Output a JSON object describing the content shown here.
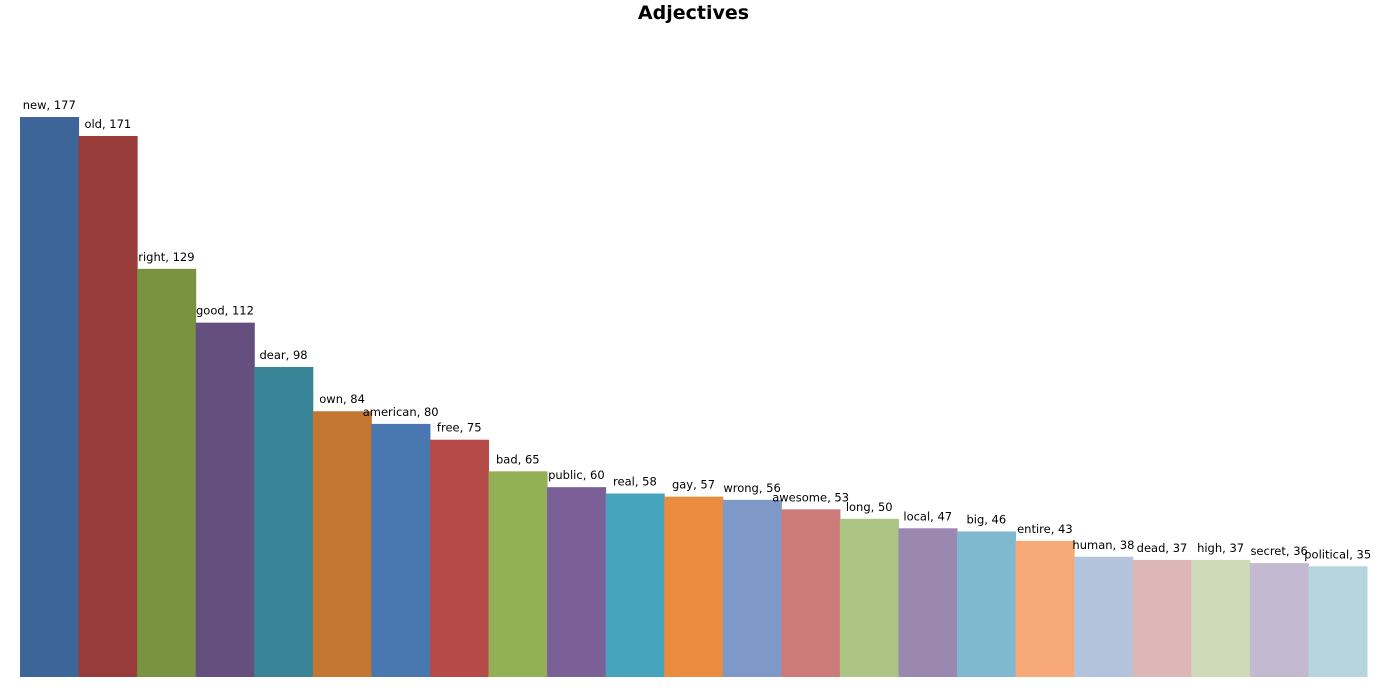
{
  "chart_data": {
    "type": "bar",
    "title": "Adjectives",
    "xlabel": "",
    "ylabel": "",
    "ylim": [
      0,
      177
    ],
    "grid": false,
    "legend": "none",
    "data_label_format": "category, value",
    "categories": [
      "new",
      "old",
      "right",
      "good",
      "dear",
      "own",
      "american",
      "free",
      "bad",
      "public",
      "real",
      "gay",
      "wrong",
      "awesome",
      "long",
      "local",
      "big",
      "entire",
      "human",
      "dead",
      "high",
      "secret",
      "political"
    ],
    "values": [
      177,
      171,
      129,
      112,
      98,
      84,
      80,
      75,
      65,
      60,
      58,
      57,
      56,
      53,
      50,
      47,
      46,
      43,
      38,
      37,
      37,
      36,
      35
    ],
    "colors": [
      "#3e6597",
      "#983c3a",
      "#7a9341",
      "#644f7e",
      "#398597",
      "#c47733",
      "#4977b0",
      "#b54b48",
      "#92b055",
      "#7b5f97",
      "#46a4bc",
      "#e98c40",
      "#7e99c7",
      "#ca7b7a",
      "#adc584",
      "#9b88b1",
      "#7eb9cf",
      "#f6a976",
      "#b4c3dc",
      "#ddb6b6",
      "#cfdbb8",
      "#c3b9d0",
      "#b5d4de"
    ]
  }
}
